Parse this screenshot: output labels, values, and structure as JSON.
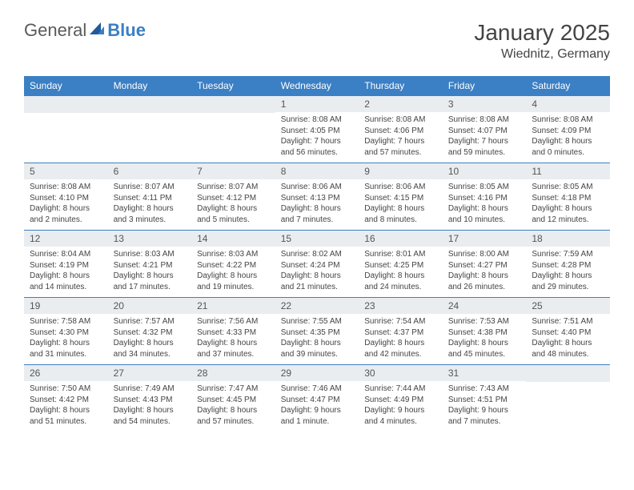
{
  "logo": {
    "text_general": "General",
    "text_blue": "Blue"
  },
  "title": "January 2025",
  "location": "Wiednitz, Germany",
  "colors": {
    "header_bg": "#3b7fc4",
    "header_text": "#ffffff",
    "daynum_bg": "#e9edf0",
    "text": "#444444",
    "border": "#3b7fc4"
  },
  "day_headers": [
    "Sunday",
    "Monday",
    "Tuesday",
    "Wednesday",
    "Thursday",
    "Friday",
    "Saturday"
  ],
  "weeks": [
    [
      null,
      null,
      null,
      {
        "num": "1",
        "sunrise": "Sunrise: 8:08 AM",
        "sunset": "Sunset: 4:05 PM",
        "daylight": "Daylight: 7 hours and 56 minutes."
      },
      {
        "num": "2",
        "sunrise": "Sunrise: 8:08 AM",
        "sunset": "Sunset: 4:06 PM",
        "daylight": "Daylight: 7 hours and 57 minutes."
      },
      {
        "num": "3",
        "sunrise": "Sunrise: 8:08 AM",
        "sunset": "Sunset: 4:07 PM",
        "daylight": "Daylight: 7 hours and 59 minutes."
      },
      {
        "num": "4",
        "sunrise": "Sunrise: 8:08 AM",
        "sunset": "Sunset: 4:09 PM",
        "daylight": "Daylight: 8 hours and 0 minutes."
      }
    ],
    [
      {
        "num": "5",
        "sunrise": "Sunrise: 8:08 AM",
        "sunset": "Sunset: 4:10 PM",
        "daylight": "Daylight: 8 hours and 2 minutes."
      },
      {
        "num": "6",
        "sunrise": "Sunrise: 8:07 AM",
        "sunset": "Sunset: 4:11 PM",
        "daylight": "Daylight: 8 hours and 3 minutes."
      },
      {
        "num": "7",
        "sunrise": "Sunrise: 8:07 AM",
        "sunset": "Sunset: 4:12 PM",
        "daylight": "Daylight: 8 hours and 5 minutes."
      },
      {
        "num": "8",
        "sunrise": "Sunrise: 8:06 AM",
        "sunset": "Sunset: 4:13 PM",
        "daylight": "Daylight: 8 hours and 7 minutes."
      },
      {
        "num": "9",
        "sunrise": "Sunrise: 8:06 AM",
        "sunset": "Sunset: 4:15 PM",
        "daylight": "Daylight: 8 hours and 8 minutes."
      },
      {
        "num": "10",
        "sunrise": "Sunrise: 8:05 AM",
        "sunset": "Sunset: 4:16 PM",
        "daylight": "Daylight: 8 hours and 10 minutes."
      },
      {
        "num": "11",
        "sunrise": "Sunrise: 8:05 AM",
        "sunset": "Sunset: 4:18 PM",
        "daylight": "Daylight: 8 hours and 12 minutes."
      }
    ],
    [
      {
        "num": "12",
        "sunrise": "Sunrise: 8:04 AM",
        "sunset": "Sunset: 4:19 PM",
        "daylight": "Daylight: 8 hours and 14 minutes."
      },
      {
        "num": "13",
        "sunrise": "Sunrise: 8:03 AM",
        "sunset": "Sunset: 4:21 PM",
        "daylight": "Daylight: 8 hours and 17 minutes."
      },
      {
        "num": "14",
        "sunrise": "Sunrise: 8:03 AM",
        "sunset": "Sunset: 4:22 PM",
        "daylight": "Daylight: 8 hours and 19 minutes."
      },
      {
        "num": "15",
        "sunrise": "Sunrise: 8:02 AM",
        "sunset": "Sunset: 4:24 PM",
        "daylight": "Daylight: 8 hours and 21 minutes."
      },
      {
        "num": "16",
        "sunrise": "Sunrise: 8:01 AM",
        "sunset": "Sunset: 4:25 PM",
        "daylight": "Daylight: 8 hours and 24 minutes."
      },
      {
        "num": "17",
        "sunrise": "Sunrise: 8:00 AM",
        "sunset": "Sunset: 4:27 PM",
        "daylight": "Daylight: 8 hours and 26 minutes."
      },
      {
        "num": "18",
        "sunrise": "Sunrise: 7:59 AM",
        "sunset": "Sunset: 4:28 PM",
        "daylight": "Daylight: 8 hours and 29 minutes."
      }
    ],
    [
      {
        "num": "19",
        "sunrise": "Sunrise: 7:58 AM",
        "sunset": "Sunset: 4:30 PM",
        "daylight": "Daylight: 8 hours and 31 minutes."
      },
      {
        "num": "20",
        "sunrise": "Sunrise: 7:57 AM",
        "sunset": "Sunset: 4:32 PM",
        "daylight": "Daylight: 8 hours and 34 minutes."
      },
      {
        "num": "21",
        "sunrise": "Sunrise: 7:56 AM",
        "sunset": "Sunset: 4:33 PM",
        "daylight": "Daylight: 8 hours and 37 minutes."
      },
      {
        "num": "22",
        "sunrise": "Sunrise: 7:55 AM",
        "sunset": "Sunset: 4:35 PM",
        "daylight": "Daylight: 8 hours and 39 minutes."
      },
      {
        "num": "23",
        "sunrise": "Sunrise: 7:54 AM",
        "sunset": "Sunset: 4:37 PM",
        "daylight": "Daylight: 8 hours and 42 minutes."
      },
      {
        "num": "24",
        "sunrise": "Sunrise: 7:53 AM",
        "sunset": "Sunset: 4:38 PM",
        "daylight": "Daylight: 8 hours and 45 minutes."
      },
      {
        "num": "25",
        "sunrise": "Sunrise: 7:51 AM",
        "sunset": "Sunset: 4:40 PM",
        "daylight": "Daylight: 8 hours and 48 minutes."
      }
    ],
    [
      {
        "num": "26",
        "sunrise": "Sunrise: 7:50 AM",
        "sunset": "Sunset: 4:42 PM",
        "daylight": "Daylight: 8 hours and 51 minutes."
      },
      {
        "num": "27",
        "sunrise": "Sunrise: 7:49 AM",
        "sunset": "Sunset: 4:43 PM",
        "daylight": "Daylight: 8 hours and 54 minutes."
      },
      {
        "num": "28",
        "sunrise": "Sunrise: 7:47 AM",
        "sunset": "Sunset: 4:45 PM",
        "daylight": "Daylight: 8 hours and 57 minutes."
      },
      {
        "num": "29",
        "sunrise": "Sunrise: 7:46 AM",
        "sunset": "Sunset: 4:47 PM",
        "daylight": "Daylight: 9 hours and 1 minute."
      },
      {
        "num": "30",
        "sunrise": "Sunrise: 7:44 AM",
        "sunset": "Sunset: 4:49 PM",
        "daylight": "Daylight: 9 hours and 4 minutes."
      },
      {
        "num": "31",
        "sunrise": "Sunrise: 7:43 AM",
        "sunset": "Sunset: 4:51 PM",
        "daylight": "Daylight: 9 hours and 7 minutes."
      },
      null
    ]
  ]
}
